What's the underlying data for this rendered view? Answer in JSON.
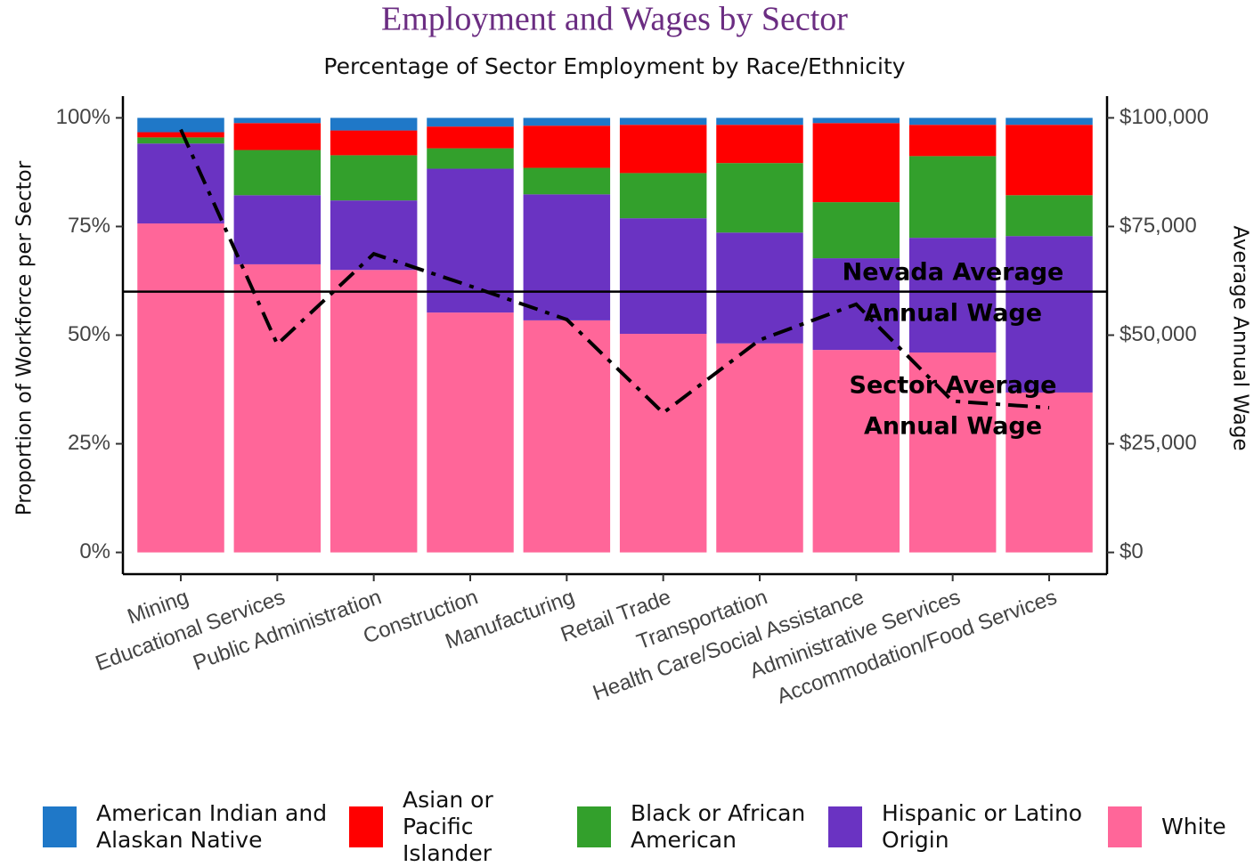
{
  "chart_data": {
    "type": "stacked_bar",
    "title": "Employment and Wages by Sector",
    "subtitle": "Percentage of Sector Employment by Race/Ethnicity",
    "y_label": "Proportion of Workforce per Sector",
    "y2_label": "Average Annual Wage",
    "categories": [
      "Mining",
      "Educational Services",
      "Public Administration",
      "Construction",
      "Manufacturing",
      "Retail Trade",
      "Transportation",
      "Health Care/Social Assistance",
      "Administrative Services",
      "Accommodation/Food Services"
    ],
    "series": [
      {
        "name": "White",
        "color": "#ff6699",
        "values": [
          75.7,
          66.3,
          65.0,
          55.2,
          53.4,
          50.3,
          48.1,
          46.6,
          46.0,
          36.8
        ]
      },
      {
        "name": "Hispanic or Latino Origin",
        "color": "#6a33c2",
        "values": [
          18.4,
          15.9,
          16.0,
          33.1,
          29.0,
          26.6,
          25.5,
          21.1,
          26.4,
          36.0
        ]
      },
      {
        "name": "Black or African American",
        "color": "#33a02c",
        "values": [
          1.4,
          10.4,
          10.4,
          4.7,
          6.1,
          10.4,
          16.0,
          12.9,
          18.8,
          9.4
        ]
      },
      {
        "name": "Asian or Pacific Islander",
        "color": "#ff0000",
        "values": [
          1.2,
          6.2,
          5.7,
          5.0,
          9.7,
          11.1,
          8.8,
          18.2,
          7.2,
          16.2
        ]
      },
      {
        "name": "American Indian and Alaskan Native",
        "color": "#1f78c8",
        "values": [
          3.3,
          1.2,
          2.9,
          2.0,
          1.8,
          1.6,
          1.6,
          1.2,
          1.6,
          1.6
        ]
      }
    ],
    "legend_order": [
      4,
      3,
      2,
      1,
      0
    ],
    "legend_position": "bottom",
    "wage_line": {
      "axis": "y2",
      "color": "#000000",
      "style": "dashdot",
      "values": [
        97300,
        47900,
        68700,
        61300,
        53600,
        32100,
        48900,
        57100,
        34800,
        33300
      ]
    },
    "reference_line": {
      "axis": "y2",
      "color": "#000000",
      "value": 60000
    },
    "annotations": [
      [
        "Nevada Average",
        "Annual Wage"
      ],
      [
        "Sector Average",
        "Annual Wage"
      ]
    ],
    "ylim": [
      -5,
      105
    ],
    "yticks": [
      {
        "value": 0,
        "label": "0%"
      },
      {
        "value": 25,
        "label": "25%"
      },
      {
        "value": 50,
        "label": "50%"
      },
      {
        "value": 75,
        "label": "75%"
      },
      {
        "value": 100,
        "label": "100%"
      }
    ],
    "y2lim": [
      -5000,
      105000
    ],
    "y2ticks": [
      {
        "value": 0,
        "label": "$0"
      },
      {
        "value": 25000,
        "label": "$25,000"
      },
      {
        "value": 50000,
        "label": "$50,000"
      },
      {
        "value": 75000,
        "label": "$75,000"
      },
      {
        "value": 100000,
        "label": "$100,000"
      }
    ],
    "grid": false
  }
}
